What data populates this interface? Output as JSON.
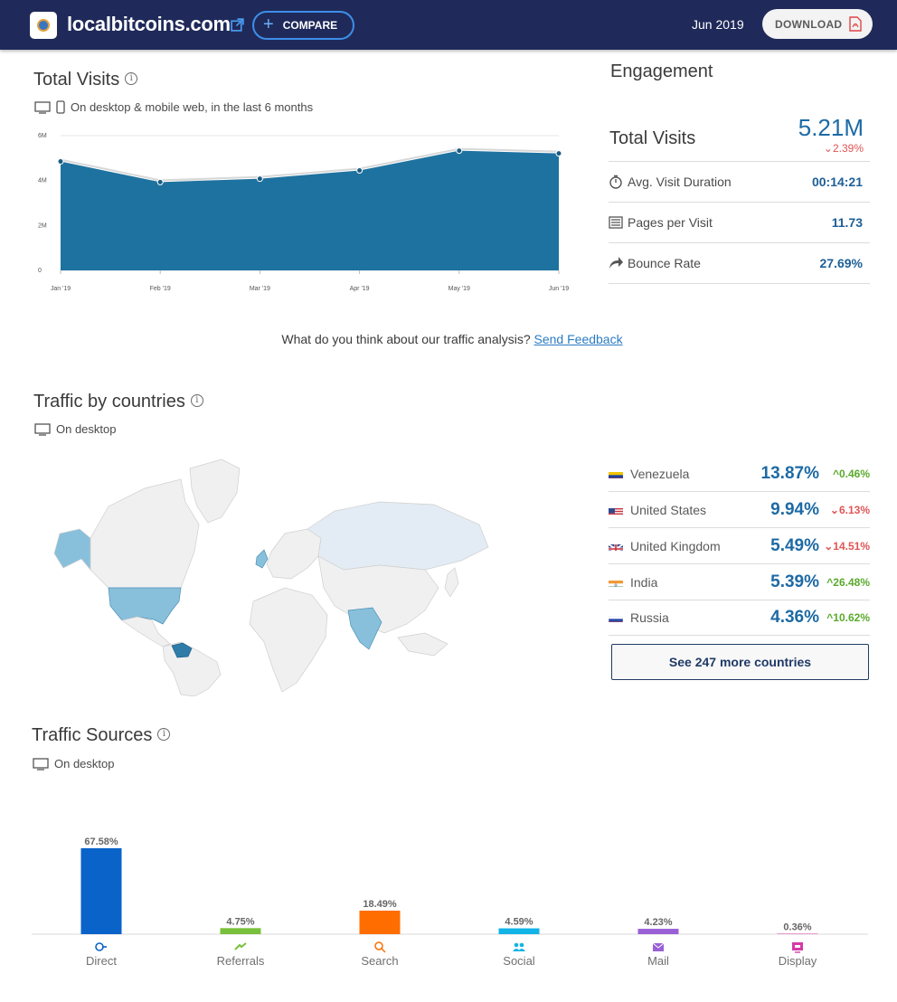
{
  "header": {
    "site_name": "localbitcoins.com",
    "compare_label": "COMPARE",
    "date": "Jun 2019",
    "download_label": "DOWNLOAD"
  },
  "total_visits": {
    "title": "Total Visits",
    "subtitle": "On desktop & mobile web, in the last 6 months"
  },
  "engagement": {
    "title": "Engagement",
    "total_label": "Total Visits",
    "total_value": "5.21M",
    "total_change": "2.39%",
    "metrics": [
      {
        "label": "Avg. Visit Duration",
        "value": "00:14:21",
        "icon": "stopwatch-icon"
      },
      {
        "label": "Pages per Visit",
        "value": "11.73",
        "icon": "pages-icon"
      },
      {
        "label": "Bounce Rate",
        "value": "27.69%",
        "icon": "bounce-arrow-icon"
      }
    ]
  },
  "feedback": {
    "question": "What do you think about our traffic analysis?",
    "link": "Send Feedback"
  },
  "countries": {
    "title": "Traffic by countries",
    "subtitle": "On desktop",
    "list": [
      {
        "name": "Venezuela",
        "share": "13.87%",
        "change": "0.46%",
        "direction": "up"
      },
      {
        "name": "United States",
        "share": "9.94%",
        "change": "6.13%",
        "direction": "down"
      },
      {
        "name": "United Kingdom",
        "share": "5.49%",
        "change": "14.51%",
        "direction": "down"
      },
      {
        "name": "India",
        "share": "5.39%",
        "change": "26.48%",
        "direction": "up"
      },
      {
        "name": "Russia",
        "share": "4.36%",
        "change": "10.62%",
        "direction": "up"
      }
    ],
    "see_more": "See 247 more countries"
  },
  "sources": {
    "title": "Traffic Sources",
    "subtitle": "On desktop"
  },
  "colors": {
    "header_bg": "#1f2a5a",
    "area_fill": "#1e72a0",
    "accent_blue": "#1d6aa5",
    "up_green": "#5aaa2e",
    "down_red": "#e05555"
  },
  "chart_data": [
    {
      "type": "area",
      "x": [
        "Jan '19",
        "Feb '19",
        "Mar '19",
        "Apr '19",
        "May '19",
        "Jun '19"
      ],
      "series": [
        {
          "values": [
            4.85,
            3.93,
            4.08,
            4.45,
            5.33,
            5.21
          ]
        }
      ],
      "ylabel_ticks": [
        "0",
        "2M",
        "4M",
        "6M"
      ],
      "ylim": [
        0,
        6
      ],
      "unit": "M",
      "grid": true
    },
    {
      "type": "bar",
      "categories": [
        "Direct",
        "Referrals",
        "Search",
        "Social",
        "Mail",
        "Display"
      ],
      "values": [
        67.58,
        4.75,
        18.49,
        4.59,
        4.23,
        0.36
      ],
      "labels": [
        "67.58%",
        "4.75%",
        "18.49%",
        "4.59%",
        "4.23%",
        "0.36%"
      ],
      "colors": [
        "#0a63c9",
        "#78c03b",
        "#ff6d00",
        "#12b3e6",
        "#9a60d6",
        "#d63aa8"
      ],
      "ylim": [
        0,
        70
      ]
    }
  ]
}
